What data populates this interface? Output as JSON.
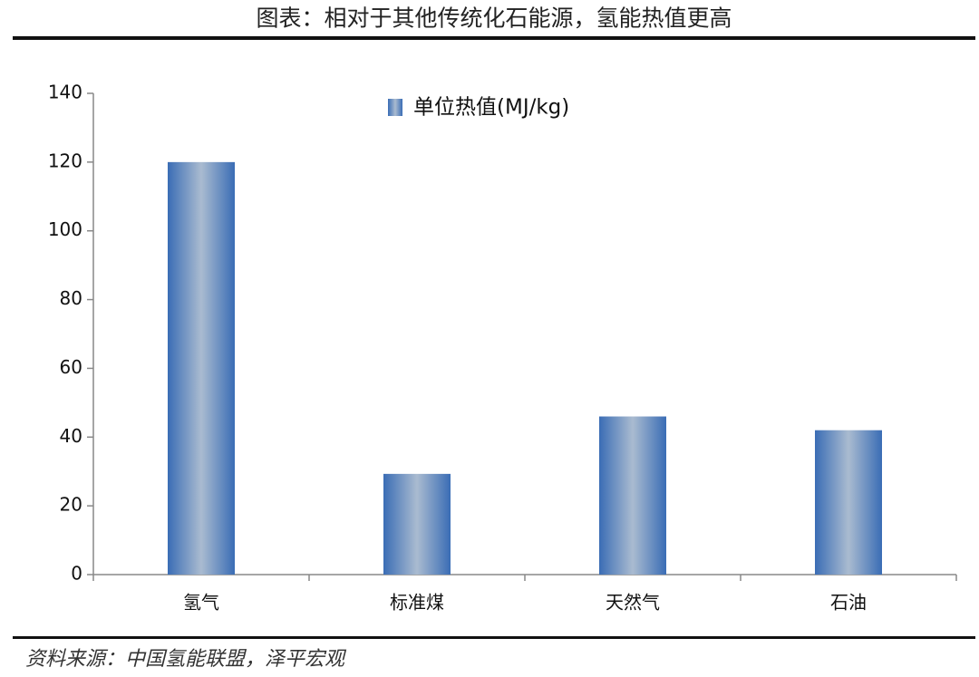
{
  "chart_data": {
    "type": "bar",
    "title": "图表：相对于其他传统化石能源，氢能热值更高",
    "source": "资料来源：中国氢能联盟，泽平宏观",
    "categories": [
      "氢气",
      "标准煤",
      "天然气",
      "石油"
    ],
    "series": [
      {
        "name": "单位热值(MJ/kg)",
        "color": "#3a6db5",
        "values": [
          120,
          29.3,
          46,
          42
        ]
      }
    ],
    "ylim": [
      0,
      140
    ],
    "yticks": [
      0,
      20,
      40,
      60,
      80,
      100,
      120,
      140
    ],
    "grid": false,
    "legend": "top"
  }
}
